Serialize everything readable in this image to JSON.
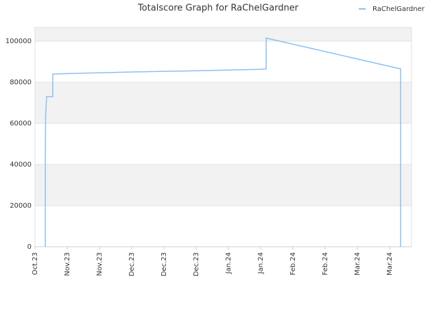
{
  "chart_data": {
    "type": "line",
    "title": "Totalscore Graph for RaChelGardner",
    "xlim": [
      0,
      11.68
    ],
    "ylim": [
      0,
      106667
    ],
    "xticks": [
      {
        "value": 0,
        "label": "Oct.23"
      },
      {
        "value": 1,
        "label": "Nov.23"
      },
      {
        "value": 2,
        "label": "Nov.23"
      },
      {
        "value": 3,
        "label": "Dec.23"
      },
      {
        "value": 4,
        "label": "Dec.23"
      },
      {
        "value": 5,
        "label": "Dec.23"
      },
      {
        "value": 6,
        "label": "Jan.24"
      },
      {
        "value": 7,
        "label": "Jan.24"
      },
      {
        "value": 8,
        "label": "Feb.24"
      },
      {
        "value": 9,
        "label": "Feb.24"
      },
      {
        "value": 10,
        "label": "Mar.24"
      },
      {
        "value": 11,
        "label": "Mar.24"
      }
    ],
    "yticks": [
      0,
      20000,
      40000,
      60000,
      80000,
      100000
    ],
    "grid": true,
    "legend": "top-right",
    "series": [
      {
        "name": "RaChelGardner",
        "color": "#8cc0ee",
        "x": [
          0.32,
          0.32,
          0.33,
          0.34,
          0.36,
          0.55,
          0.55,
          1,
          2,
          3,
          4,
          5,
          6,
          7,
          7.17,
          7.17,
          11.34,
          11.34
        ],
        "values": [
          0,
          43000,
          64000,
          67000,
          73000,
          73000,
          84000,
          84200,
          84600,
          85000,
          85300,
          85600,
          85900,
          86300,
          86500,
          101500,
          86500,
          0
        ]
      }
    ]
  }
}
